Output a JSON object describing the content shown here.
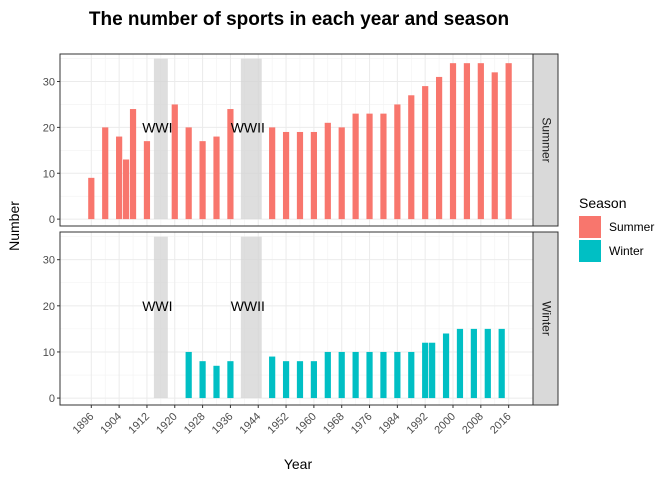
{
  "chart_data": {
    "type": "bar",
    "title": "The number of sports in each year and season",
    "xlabel": "Year",
    "ylabel": "Number",
    "xlim": [
      1887,
      2023
    ],
    "ylim": [
      -1.5,
      36
    ],
    "x_ticks": [
      1896,
      1904,
      1912,
      1920,
      1928,
      1936,
      1944,
      1952,
      1960,
      1968,
      1976,
      1984,
      1992,
      2000,
      2008,
      2016
    ],
    "y_ticks": [
      0,
      10,
      20,
      30
    ],
    "grid": true,
    "legend": {
      "title": "Season",
      "placement": "right"
    },
    "annotations": [
      {
        "label": "WWI",
        "x_start": 1914,
        "x_end": 1918,
        "label_x": 1915,
        "label_y": 20
      },
      {
        "label": "WWII",
        "x_start": 1939,
        "x_end": 1945,
        "label_x": 1941,
        "label_y": 20
      }
    ],
    "panels": [
      {
        "name": "Summer",
        "color": "#F8766D",
        "x": [
          1896,
          1900,
          1904,
          1906,
          1908,
          1912,
          1920,
          1924,
          1928,
          1932,
          1936,
          1948,
          1952,
          1956,
          1960,
          1964,
          1968,
          1972,
          1976,
          1980,
          1984,
          1988,
          1992,
          1996,
          2000,
          2004,
          2008,
          2012,
          2016
        ],
        "values": [
          9,
          20,
          18,
          13,
          24,
          17,
          25,
          20,
          17,
          18,
          24,
          20,
          19,
          19,
          19,
          21,
          20,
          23,
          23,
          23,
          25,
          27,
          29,
          31,
          34,
          34,
          34,
          32,
          34
        ]
      },
      {
        "name": "Winter",
        "color": "#00BFC4",
        "x": [
          1924,
          1928,
          1932,
          1936,
          1948,
          1952,
          1956,
          1960,
          1964,
          1968,
          1972,
          1976,
          1980,
          1984,
          1988,
          1992,
          1994,
          1998,
          2002,
          2006,
          2010,
          2014
        ],
        "values": [
          10,
          8,
          7,
          8,
          9,
          8,
          8,
          8,
          10,
          10,
          10,
          10,
          10,
          10,
          10,
          12,
          12,
          14,
          15,
          15,
          15,
          15
        ]
      }
    ]
  }
}
